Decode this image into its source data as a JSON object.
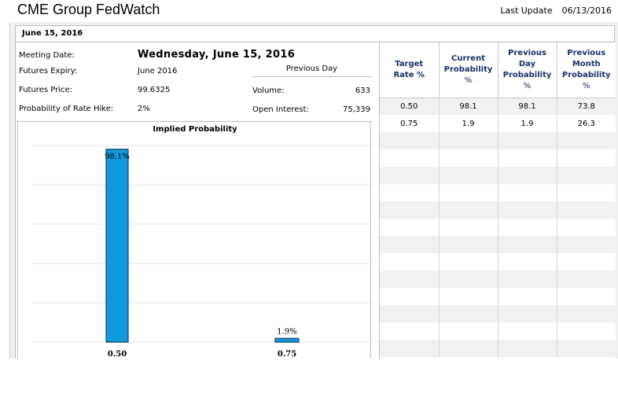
{
  "app": {
    "title": "CME Group FedWatch"
  },
  "last_update": {
    "label": "Last Update",
    "date": "06/13/2016"
  },
  "meeting_header": "June 15, 2016",
  "info": {
    "meeting_date_label": "Meeting Date:",
    "meeting_date_value": "Wednesday, June 15, 2016",
    "futures_expiry_label": "Futures Expiry:",
    "futures_expiry_value": "June 2016",
    "futures_price_label": "Futures Price:",
    "futures_price_value": "99.6325",
    "prob_hike_label": "Probability of Rate Hike:",
    "prob_hike_value": "2%",
    "previous_day_label": "Previous Day",
    "volume_label": "Volume:",
    "volume_value": "633",
    "open_interest_label": "Open Interest:",
    "open_interest_value": "75,339"
  },
  "chart_data": {
    "type": "bar",
    "title": "Implied Probability",
    "categories": [
      "0.50",
      "0.75"
    ],
    "values": [
      98.1,
      1.9
    ],
    "value_labels": [
      "98.1%",
      "1.9%"
    ],
    "ylim": [
      0,
      100
    ],
    "xlabel": "",
    "ylabel": "",
    "grid": true,
    "colors": {
      "bar": "#0f9ae0",
      "bar_border": "#1e3f5a",
      "grid": "#e3e3e3"
    }
  },
  "table": {
    "headers": [
      {
        "lines": [
          "Target",
          "Rate %"
        ]
      },
      {
        "lines": [
          "Current",
          "Probability",
          "%"
        ]
      },
      {
        "lines": [
          "Previous",
          "Day",
          "Probability",
          "%"
        ]
      },
      {
        "lines": [
          "Previous",
          "Month",
          "Probability",
          "%"
        ]
      }
    ],
    "rows": [
      [
        "0.50",
        "98.1",
        "98.1",
        "73.8"
      ],
      [
        "0.75",
        "1.9",
        "1.9",
        "26.3"
      ]
    ],
    "empty_rows": 13
  }
}
